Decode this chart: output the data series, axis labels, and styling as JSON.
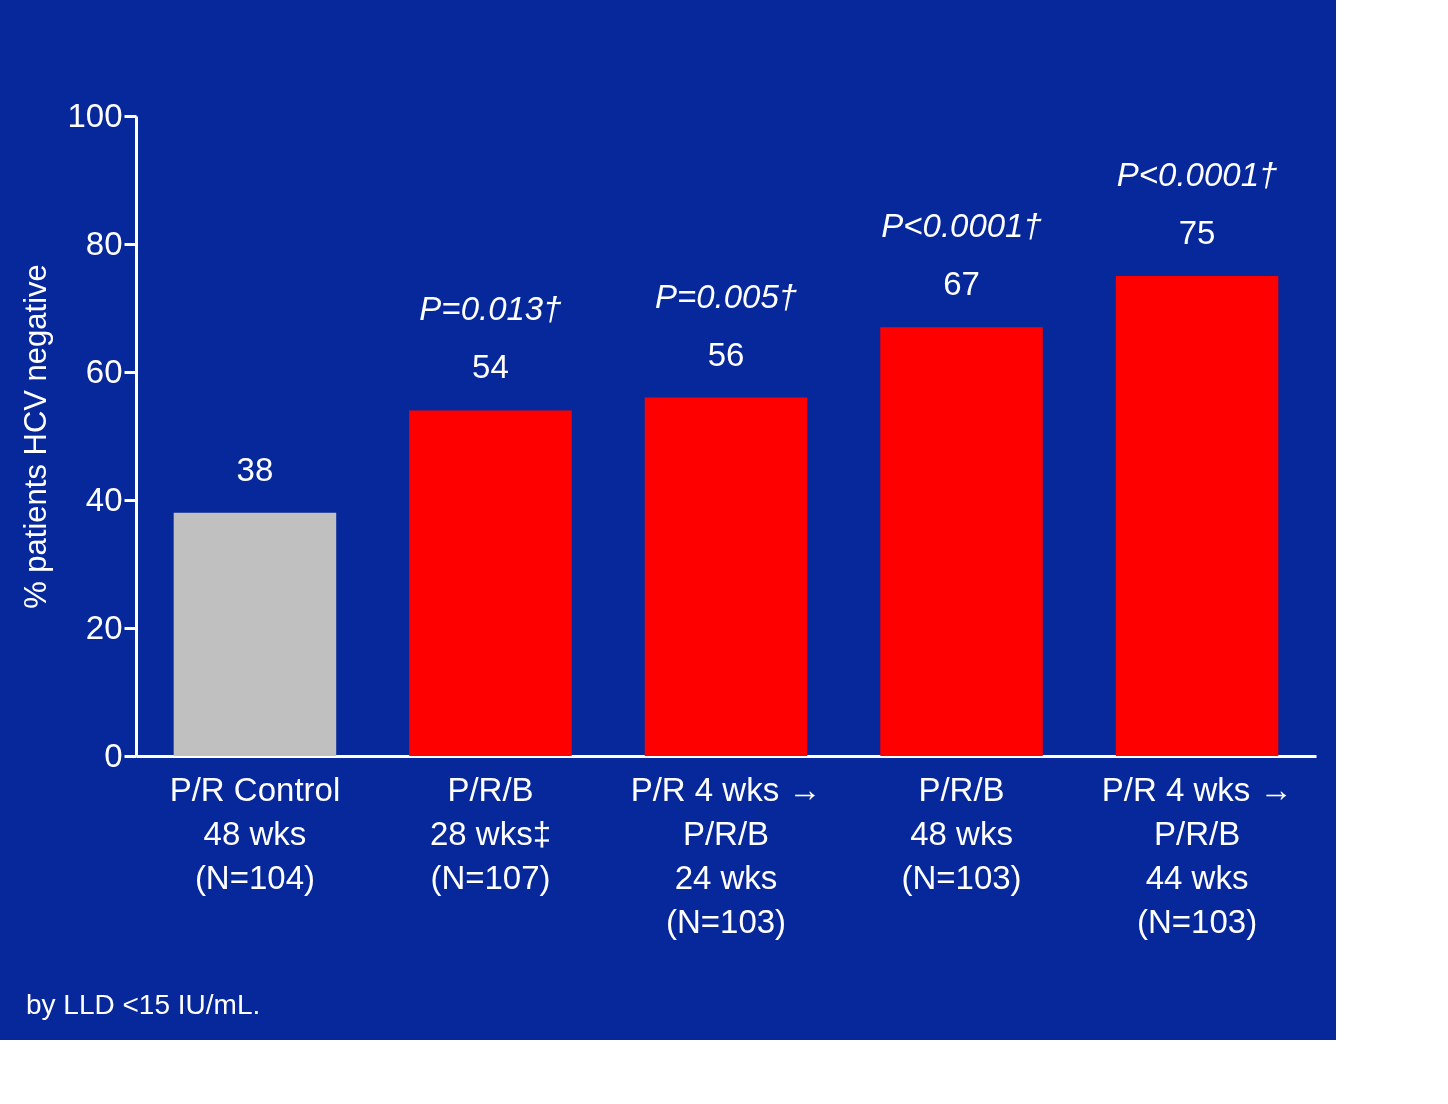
{
  "chart_data": {
    "type": "bar",
    "ylabel": "% patients HCV negative",
    "categories": [
      "P/R Control\n48 wks\n(N=104)",
      "P/R/B\n28 wks‡\n(N=107)",
      "P/R 4 wks →\nP/R/B\n24 wks\n(N=103)",
      "P/R/B\n48 wks\n(N=103)",
      "P/R 4 wks →\nP/R/B\n44 wks\n(N=103)"
    ],
    "values": [
      38,
      54,
      56,
      67,
      75
    ],
    "colors": [
      "#c0c0c0",
      "#ff0000",
      "#ff0000",
      "#ff0000",
      "#ff0000"
    ],
    "data_labels": true,
    "ylim": [
      0,
      100
    ],
    "yticks": [
      0,
      20,
      40,
      60,
      80,
      100
    ],
    "grid": false,
    "annotations": [
      "P=0.013†",
      "P=0.005†",
      "P<0.0001†",
      "P<0.0001†",
      "by LLD <15 IU/mL."
    ]
  }
}
